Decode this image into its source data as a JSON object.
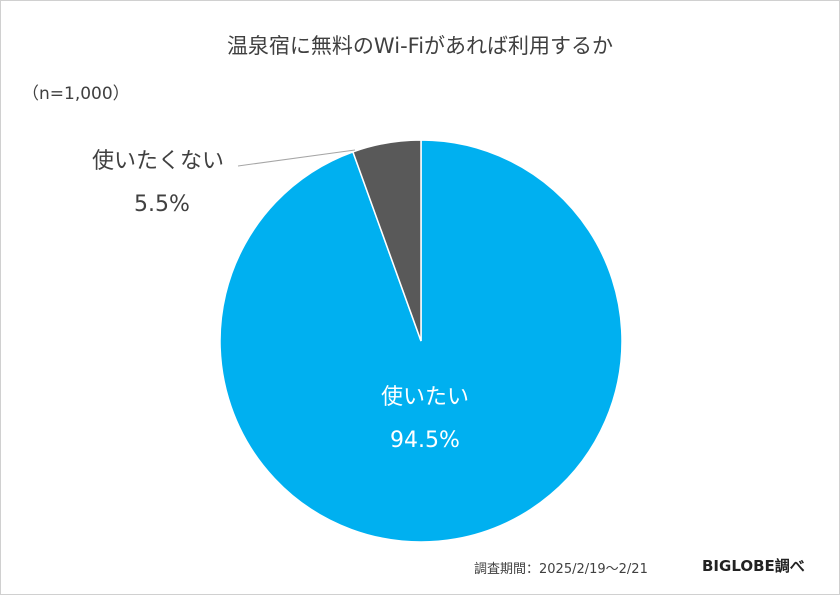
{
  "chart_data": {
    "type": "pie",
    "title": "温泉宿に無料のWi-Fiがあれば利用するか",
    "note": "（n=1,000）",
    "slices": [
      {
        "label": "使いたい",
        "value": 94.5,
        "value_label": "94.5%",
        "color": "#00b0f0"
      },
      {
        "label": "使いたくない",
        "value": 5.5,
        "value_label": "5.5%",
        "color": "#595959"
      }
    ]
  },
  "footer": {
    "period": "調査期間：2025/2/19～2/21",
    "brand": "BIGLOBE調べ"
  }
}
